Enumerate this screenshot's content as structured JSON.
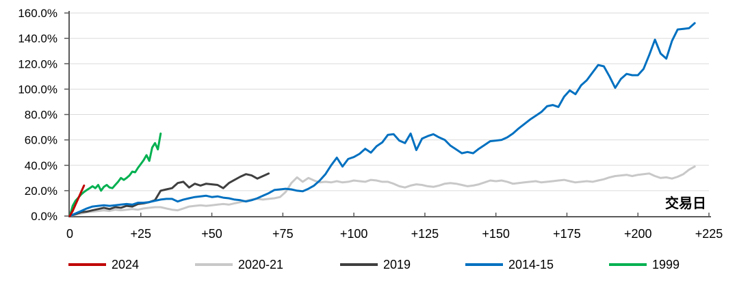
{
  "chart_data": {
    "type": "line",
    "title": "",
    "xlabel": "交易日",
    "ylabel": "",
    "x_axis": {
      "min": 0,
      "max": 225,
      "tick_step": 25,
      "tick_labels": [
        "0",
        "+25",
        "+50",
        "+75",
        "+100",
        "+125",
        "+150",
        "+175",
        "+200",
        "+225"
      ]
    },
    "y_axis": {
      "min": 0,
      "max": 160,
      "tick_step": 20,
      "tick_labels": [
        "0.0%",
        "20.0%",
        "40.0%",
        "60.0%",
        "80.0%",
        "100.0%",
        "120.0%",
        "140.0%",
        "160.0%"
      ],
      "unit": "percent"
    },
    "grid": "horizontal",
    "legend_position": "bottom",
    "colors": {
      "axis": "#595959",
      "grid": "#DADADA",
      "text": "#000000"
    },
    "draw_order": [
      1,
      2,
      3,
      4,
      0
    ],
    "series": [
      {
        "name": "2024",
        "color": "#C00000",
        "x_start": 0,
        "x_step": 1,
        "values": [
          0,
          4,
          9,
          14,
          19,
          24
        ]
      },
      {
        "name": "2020-21",
        "color": "#C8C8C8",
        "x_start": 0,
        "x_step": 2,
        "values": [
          0,
          1,
          2,
          3,
          3.5,
          4,
          4.5,
          4,
          5,
          4.5,
          5,
          5.5,
          5,
          6,
          6.5,
          7,
          7,
          6,
          5,
          4.5,
          6,
          7.5,
          8,
          8.5,
          8,
          8.5,
          9,
          9.5,
          9,
          10,
          11,
          12,
          13,
          13.5,
          13,
          13.5,
          14,
          15,
          19,
          26,
          30.5,
          27,
          30,
          28,
          26.5,
          27,
          26.5,
          27.5,
          26.5,
          27,
          28,
          27.5,
          27,
          28.5,
          28,
          27,
          27,
          25.5,
          23.5,
          22.5,
          24,
          25,
          24.5,
          23.5,
          23,
          24,
          25.5,
          26,
          25.5,
          24.5,
          23.5,
          24,
          25,
          26.5,
          28,
          27.5,
          28,
          27,
          25.5,
          26,
          26.5,
          27,
          27.5,
          26.5,
          27,
          27.5,
          28,
          28.5,
          27.5,
          26.5,
          27,
          27.5,
          27,
          28,
          29,
          30.5,
          31.5,
          32,
          32.5,
          31.5,
          32.5,
          33,
          33.5,
          31.5,
          30,
          30.5,
          29.5,
          31,
          33,
          36.5,
          39
        ]
      },
      {
        "name": "2019",
        "color": "#3F3F3F",
        "x_start": 0,
        "x_step": 2,
        "values": [
          0,
          1.5,
          3,
          3.5,
          4.5,
          5.5,
          6.5,
          5.5,
          7,
          6.5,
          8,
          7.5,
          9.5,
          10,
          11,
          12.5,
          20,
          21,
          22,
          26,
          27,
          22.5,
          25.5,
          24,
          25.5,
          25,
          24.5,
          22,
          26,
          28.5,
          31,
          33,
          32,
          29.5,
          31.5,
          33.5
        ]
      },
      {
        "name": "2014-15",
        "color": "#0070C0",
        "x_start": 0,
        "x_step": 2,
        "values": [
          0,
          2,
          4,
          6,
          7.5,
          8,
          8.5,
          8,
          8.5,
          9,
          9.5,
          9,
          10.5,
          10.5,
          11,
          12,
          13,
          13.5,
          13.5,
          11.5,
          13,
          14,
          15,
          15.5,
          16,
          15,
          15.5,
          14.5,
          14,
          13,
          12.5,
          11.5,
          12.5,
          14,
          16,
          18,
          20.5,
          21,
          21.5,
          21,
          20,
          19.5,
          21.5,
          24,
          28,
          33,
          40,
          46,
          39,
          45,
          46.5,
          49,
          53,
          50,
          55,
          58,
          64,
          64.5,
          59.5,
          57.5,
          65,
          52,
          61,
          63,
          64.5,
          62,
          60,
          55.5,
          52.5,
          49.5,
          50.5,
          49.5,
          53,
          56,
          59,
          59.5,
          60,
          62,
          65,
          69,
          72.5,
          76,
          79,
          82,
          86.5,
          87.5,
          86,
          94,
          99,
          96,
          103,
          107,
          113,
          119,
          118,
          110,
          101,
          108,
          112,
          111,
          111,
          116,
          127,
          139,
          128,
          124,
          138,
          147,
          147.5,
          148,
          152
        ]
      },
      {
        "name": "1999",
        "color": "#00B050",
        "x_start": 0,
        "x_step": 1,
        "values": [
          0,
          8,
          12,
          14.5,
          17,
          19,
          20.5,
          22,
          23.5,
          22,
          24.5,
          20,
          23,
          24.5,
          22.5,
          22,
          24.5,
          27,
          30,
          28.5,
          30,
          32,
          35,
          34.5,
          38,
          41,
          44,
          48,
          43.5,
          54,
          57.5,
          52.5,
          65
        ]
      }
    ]
  }
}
